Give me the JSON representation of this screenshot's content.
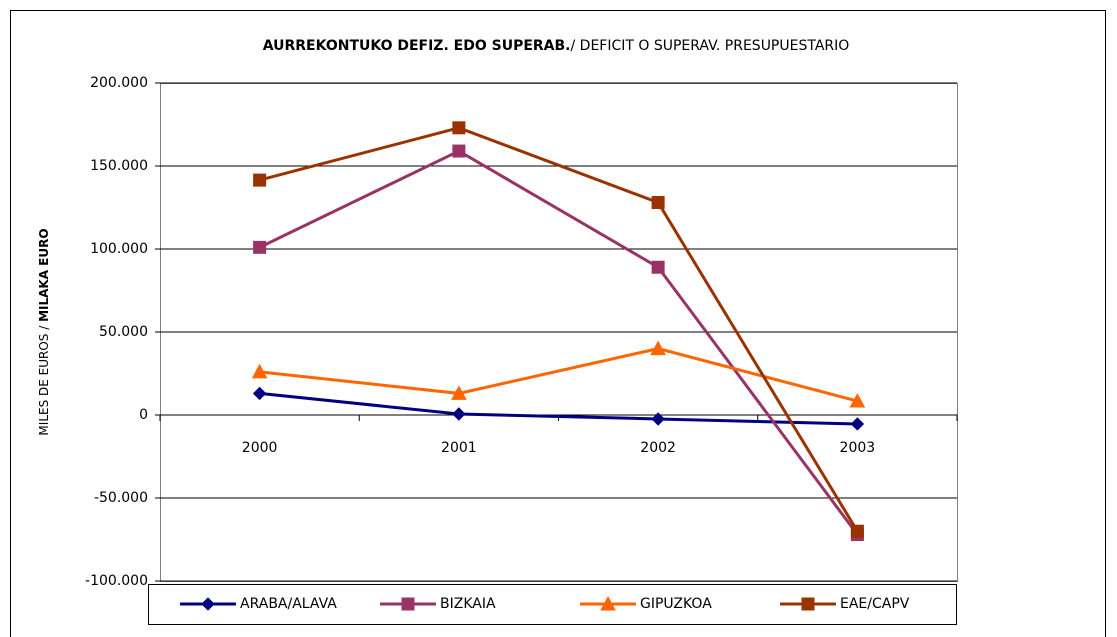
{
  "chart_data": {
    "type": "line",
    "title_parts": [
      "AURREKONTUKO DEFIZ. EDO SUPERAB.",
      "/ DEFICIT O SUPERAV. PRESUPUESTARIO"
    ],
    "ylabel_parts": [
      "MILES DE EUROS / ",
      "MILAKA EURO"
    ],
    "categories": [
      "2000",
      "2001",
      "2002",
      "2003"
    ],
    "series": [
      {
        "name": "ARABA/ALAVA",
        "color": "#000080",
        "marker": "diamond",
        "values": [
          13000,
          600,
          -2400,
          -5400
        ]
      },
      {
        "name": "BIZKAIA",
        "color": "#993366",
        "marker": "square",
        "values": [
          101000,
          159000,
          89000,
          -72000
        ]
      },
      {
        "name": "GIPUZKOA",
        "color": "#ff6600",
        "marker": "triangle",
        "values": [
          26000,
          13000,
          40000,
          8400
        ]
      },
      {
        "name": "EAE/CAPV",
        "color": "#993300",
        "marker": "square",
        "values": [
          141500,
          173000,
          128000,
          -70000
        ]
      }
    ],
    "ylim": [
      -100000,
      200000
    ],
    "yticks": [
      {
        "value": -100000,
        "label": "-100.000"
      },
      {
        "value": -50000,
        "label": "-50.000"
      },
      0,
      {
        "value": 50000,
        "label": "50.000"
      },
      {
        "value": 100000,
        "label": "100.000"
      },
      {
        "value": 150000,
        "label": "150.000"
      },
      {
        "value": 200000,
        "label": "200.000"
      }
    ],
    "grid": true
  }
}
